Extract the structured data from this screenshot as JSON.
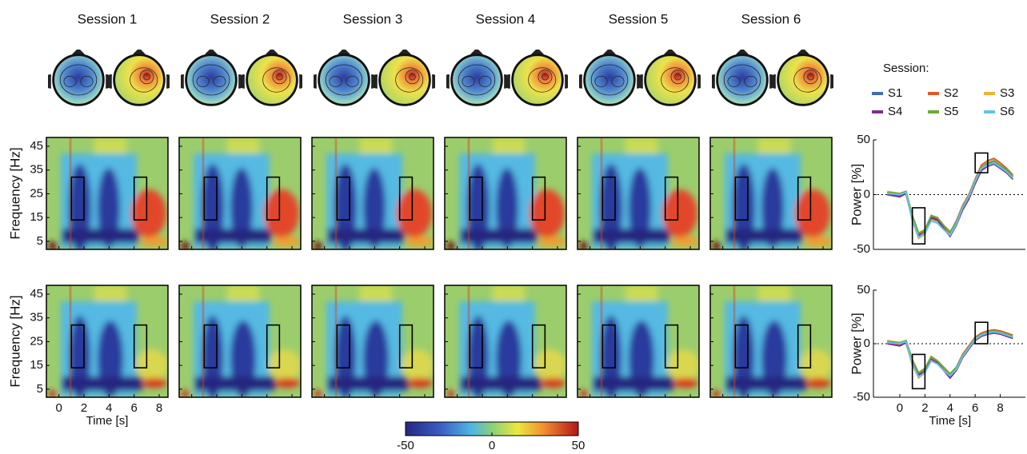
{
  "chart_data": [
    {
      "type": "heatmap",
      "titles": [
        "Session 1",
        "Session 2",
        "Session 3",
        "Session 4",
        "Session 5",
        "Session 6"
      ],
      "ylabel": "Frequency [Hz]",
      "xlabel": "Time [s]",
      "xlim": [
        -1,
        8.7
      ],
      "ylim": [
        1.6,
        48.7
      ],
      "xticks": [
        0,
        2,
        4,
        6,
        8
      ],
      "yticks": [
        5,
        15,
        25,
        35,
        45
      ],
      "boxes": [
        {
          "x": [
            1,
            2
          ],
          "y": [
            14,
            32
          ]
        },
        {
          "x": [
            6,
            7
          ],
          "y": [
            14,
            32
          ]
        }
      ],
      "colorbar": {
        "lim": [
          -50,
          50
        ],
        "ticks": [
          -50,
          0,
          50
        ]
      }
    },
    {
      "type": "line",
      "ylabel": "Power [%]",
      "legend_title": "Session:",
      "xlim": [
        -2.1,
        10
      ],
      "ylim": [
        -50,
        50
      ],
      "yticks": [
        -50,
        0,
        50
      ],
      "x": [
        -1,
        0,
        0.5,
        1,
        1.5,
        2,
        2.5,
        3,
        3.5,
        4,
        4.5,
        5,
        5.5,
        6,
        6.5,
        7,
        7.5,
        8,
        8.5,
        9
      ],
      "boxes": [
        {
          "x": [
            1,
            2
          ],
          "y": [
            -45,
            -12
          ]
        },
        {
          "x": [
            6,
            7
          ],
          "y": [
            20,
            38
          ]
        }
      ],
      "series": [
        {
          "name": "S1",
          "color": "#3d6cb9",
          "values": [
            2,
            0,
            1,
            -22,
            -38,
            -34,
            -22,
            -24,
            -30,
            -36,
            -26,
            -12,
            -2,
            12,
            24,
            28,
            30,
            26,
            22,
            16
          ]
        },
        {
          "name": "S2",
          "color": "#e0582a",
          "values": [
            1,
            -1,
            2,
            -20,
            -36,
            -33,
            -20,
            -22,
            -29,
            -35,
            -24,
            -10,
            0,
            14,
            27,
            31,
            33,
            29,
            24,
            18
          ]
        },
        {
          "name": "S3",
          "color": "#f2b134",
          "values": [
            3,
            1,
            0,
            -24,
            -40,
            -36,
            -23,
            -25,
            -31,
            -37,
            -27,
            -13,
            -3,
            11,
            23,
            27,
            29,
            25,
            21,
            15
          ]
        },
        {
          "name": "S4",
          "color": "#7b2e8e",
          "values": [
            0,
            -2,
            1,
            -21,
            -37,
            -35,
            -21,
            -23,
            -31,
            -38,
            -28,
            -14,
            -4,
            10,
            22,
            26,
            28,
            24,
            20,
            14
          ]
        },
        {
          "name": "S5",
          "color": "#6fa83a",
          "values": [
            2,
            1,
            3,
            -19,
            -35,
            -32,
            -19,
            -21,
            -28,
            -34,
            -25,
            -11,
            -1,
            13,
            25,
            29,
            31,
            27,
            23,
            17
          ]
        },
        {
          "name": "S6",
          "color": "#5ec4ea",
          "values": [
            1,
            0,
            2,
            -23,
            -39,
            -35,
            -24,
            -26,
            -32,
            -37,
            -27,
            -12,
            -2,
            12,
            24,
            27,
            29,
            25,
            21,
            15
          ]
        }
      ]
    },
    {
      "type": "line",
      "ylabel": "Power [%]",
      "xlabel": "Time [s]",
      "xlim": [
        -2.1,
        10
      ],
      "ylim": [
        -50,
        50
      ],
      "yticks": [
        -50,
        0,
        50
      ],
      "xticks": [
        0,
        2,
        4,
        6,
        8
      ],
      "x": [
        -1,
        0,
        0.5,
        1,
        1.5,
        2,
        2.5,
        3,
        3.5,
        4,
        4.5,
        5,
        5.5,
        6,
        6.5,
        7,
        7.5,
        8,
        8.5,
        9
      ],
      "boxes": [
        {
          "x": [
            1,
            2
          ],
          "y": [
            -42,
            -10
          ]
        },
        {
          "x": [
            6,
            7
          ],
          "y": [
            0,
            20
          ]
        }
      ],
      "series": [
        {
          "color": "#3d6cb9",
          "values": [
            2,
            0,
            1,
            -18,
            -30,
            -26,
            -14,
            -18,
            -24,
            -30,
            -24,
            -12,
            -4,
            4,
            8,
            10,
            11,
            10,
            8,
            6
          ]
        },
        {
          "color": "#e0582a",
          "values": [
            1,
            -1,
            2,
            -16,
            -28,
            -24,
            -13,
            -17,
            -23,
            -29,
            -22,
            -10,
            -2,
            6,
            10,
            12,
            13,
            12,
            10,
            8
          ]
        },
        {
          "color": "#f2b134",
          "values": [
            3,
            1,
            0,
            -20,
            -32,
            -27,
            -15,
            -19,
            -25,
            -31,
            -25,
            -13,
            -5,
            3,
            7,
            9,
            10,
            9,
            7,
            5
          ]
        },
        {
          "color": "#7b2e8e",
          "values": [
            0,
            -2,
            1,
            -17,
            -29,
            -26,
            -15,
            -18,
            -25,
            -32,
            -25,
            -13,
            -5,
            3,
            7,
            9,
            10,
            9,
            7,
            5
          ]
        },
        {
          "color": "#6fa83a",
          "values": [
            2,
            1,
            3,
            -15,
            -27,
            -23,
            -12,
            -16,
            -22,
            -28,
            -22,
            -11,
            -3,
            5,
            9,
            11,
            12,
            11,
            9,
            7
          ]
        },
        {
          "color": "#5ec4ea",
          "values": [
            1,
            0,
            2,
            -19,
            -31,
            -27,
            -16,
            -19,
            -25,
            -30,
            -24,
            -12,
            -4,
            4,
            8,
            10,
            11,
            10,
            8,
            6
          ]
        }
      ]
    }
  ]
}
